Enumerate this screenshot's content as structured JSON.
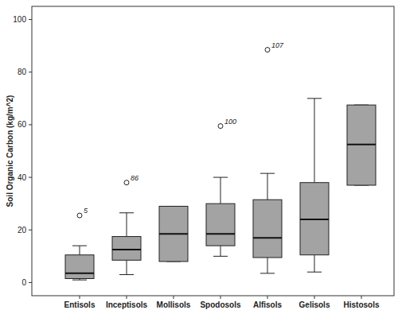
{
  "chart_data": {
    "type": "box",
    "y_label": "Soil Organic Carbon (kg/m^2)",
    "categories": [
      "Entisols",
      "Inceptisols",
      "Mollisols",
      "Spodosols",
      "Alfisols",
      "Gelisols",
      "Histosols"
    ],
    "boxes": [
      {
        "min": 1,
        "q1": 1.5,
        "median": 3.5,
        "q3": 10.5,
        "max": 14,
        "outliers": [
          {
            "value": 25.5,
            "label": "5"
          }
        ]
      },
      {
        "min": 3,
        "q1": 8.5,
        "median": 12.5,
        "q3": 17.5,
        "max": 26.5,
        "outliers": [
          {
            "value": 38,
            "label": "86"
          }
        ]
      },
      {
        "min": 8,
        "q1": 8,
        "median": 18.5,
        "q3": 29,
        "max": 29,
        "outliers": []
      },
      {
        "min": 10,
        "q1": 14,
        "median": 18.5,
        "q3": 30,
        "max": 40,
        "outliers": [
          {
            "value": 59.5,
            "label": "100"
          }
        ]
      },
      {
        "min": 3.5,
        "q1": 9.5,
        "median": 17,
        "q3": 31.5,
        "max": 41.5,
        "outliers": [
          {
            "value": 88.5,
            "label": "107"
          }
        ]
      },
      {
        "min": 4,
        "q1": 10.5,
        "median": 24,
        "q3": 38,
        "max": 70,
        "outliers": []
      },
      {
        "min": 37,
        "q1": 37,
        "median": 52.5,
        "q3": 67.5,
        "max": 67.5,
        "outliers": []
      }
    ],
    "color": "#a3a3a3",
    "ylim": [
      -5,
      105
    ],
    "yticks": [
      0,
      20,
      40,
      60,
      80,
      100
    ],
    "grid": false
  }
}
